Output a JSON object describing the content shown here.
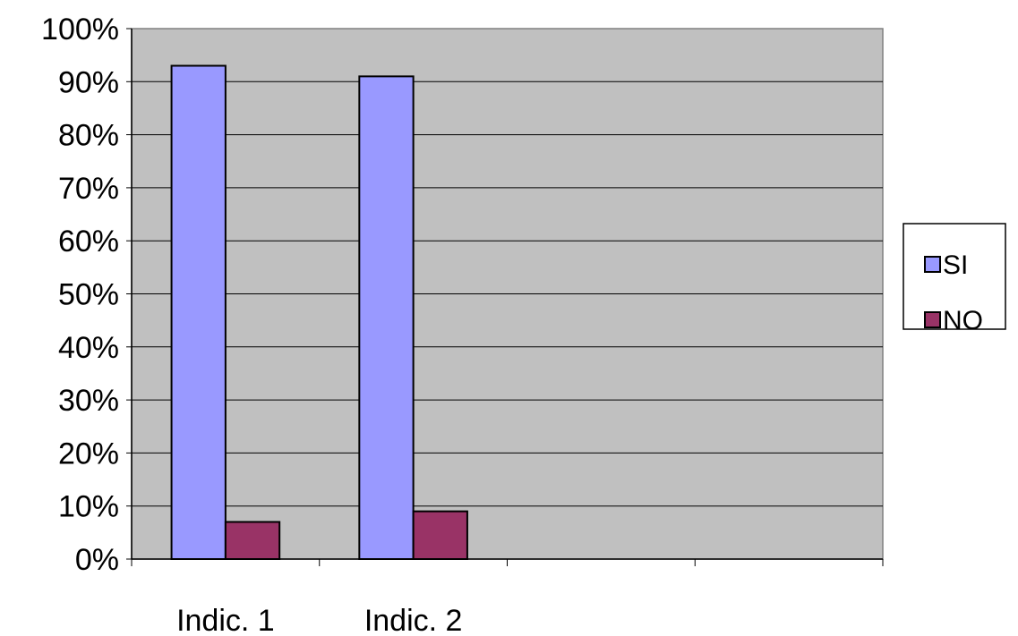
{
  "chart_data": {
    "type": "bar",
    "categories": [
      "Indic. 1",
      "Indic. 2",
      "",
      ""
    ],
    "series": [
      {
        "name": "SI",
        "values": [
          93,
          91,
          null,
          null
        ],
        "color": "#9999ff"
      },
      {
        "name": "NO",
        "values": [
          7,
          9,
          null,
          null
        ],
        "color": "#993366"
      }
    ],
    "ylim": [
      0,
      100
    ],
    "y_ticks": [
      0,
      10,
      20,
      30,
      40,
      50,
      60,
      70,
      80,
      90,
      100
    ],
    "y_tick_suffix": "%",
    "plot_background": "#c0c0c0",
    "grid": true,
    "legend_position": "right"
  }
}
